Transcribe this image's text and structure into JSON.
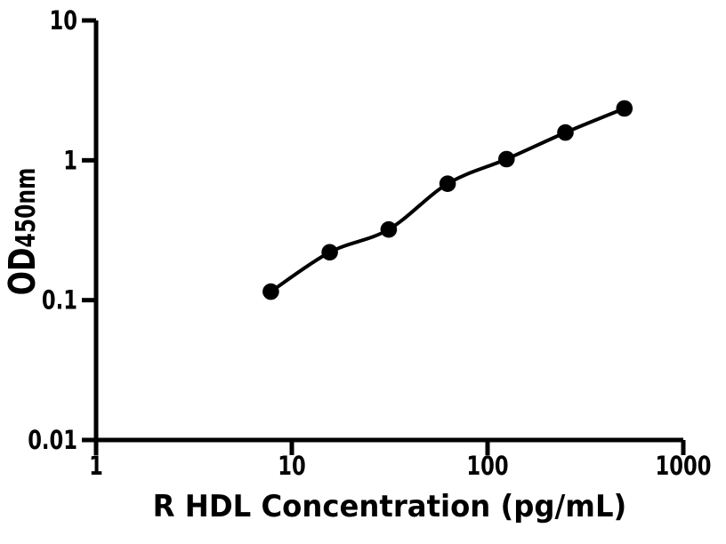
{
  "chart_data": {
    "type": "scatter",
    "title": "",
    "xlabel": "R HDL Concentration (pg/mL)",
    "ylabel_main": "OD",
    "ylabel_sub": "450nm",
    "x_scale": "log",
    "y_scale": "log",
    "xlim": [
      1,
      1000
    ],
    "ylim": [
      0.01,
      10
    ],
    "x_ticks": [
      {
        "value": 1,
        "label": "1"
      },
      {
        "value": 10,
        "label": "10"
      },
      {
        "value": 100,
        "label": "100"
      },
      {
        "value": 1000,
        "label": "1000"
      }
    ],
    "y_ticks": [
      {
        "value": 0.01,
        "label": "0.01"
      },
      {
        "value": 0.1,
        "label": "0.1"
      },
      {
        "value": 1,
        "label": "1"
      },
      {
        "value": 10,
        "label": "10"
      }
    ],
    "grid": false,
    "legend_position": "none",
    "background_color": "#ffffff",
    "axis_color": "#000000",
    "series": [
      {
        "name": "standard-curve",
        "marker": "filled-circle",
        "color": "#000000",
        "line": "smooth-fit",
        "x": [
          7.8125,
          15.625,
          31.25,
          62.5,
          125,
          250,
          500
        ],
        "y": [
          0.115,
          0.22,
          0.32,
          0.68,
          1.02,
          1.58,
          2.35
        ]
      }
    ]
  }
}
